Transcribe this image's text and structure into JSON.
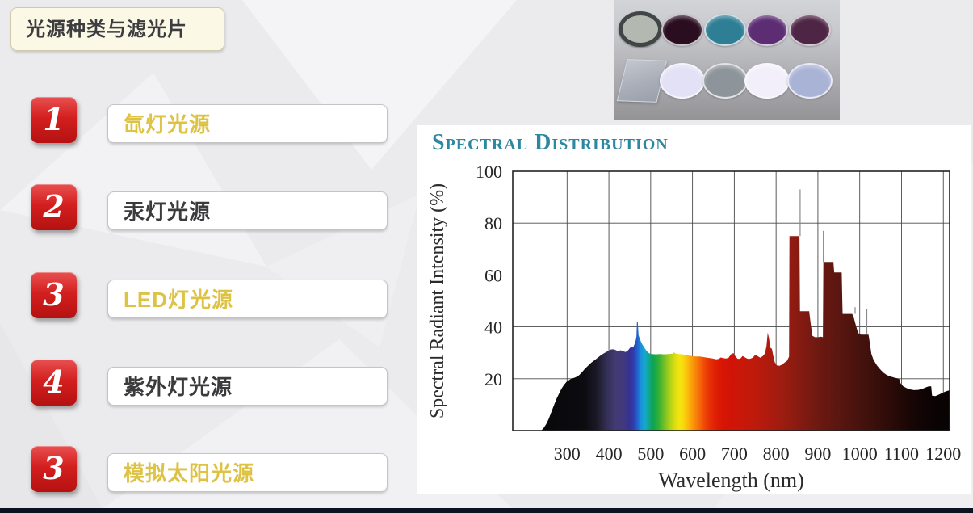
{
  "slide": {
    "title": "光源种类与滤光片",
    "items": [
      {
        "number": "1",
        "label": "氙灯光源",
        "highlight": true
      },
      {
        "number": "2",
        "label": "汞灯光源",
        "highlight": false
      },
      {
        "number": "3",
        "label": "LED灯光源",
        "highlight": true
      },
      {
        "number": "4",
        "label": "紫外灯光源",
        "highlight": false
      },
      {
        "number": "3",
        "label": "模拟太阳光源",
        "highlight": true
      }
    ],
    "colors": {
      "badge_red": "#d41f1f",
      "highlight_yellow": "#ddc243",
      "text_dark": "#3b3b3e",
      "title_box_bg": "#fcf8e6",
      "bottom_bar": "#0c1220",
      "chart_title_teal": "#2e87a0"
    }
  },
  "filters_photo": {
    "description": "photo of optical filters, two rows of five",
    "rows": [
      {
        "items": [
          {
            "name": "nd-filter",
            "type": "circle-ring",
            "color": "#b3b8b0",
            "ring": "#404645"
          },
          {
            "name": "dark-magenta-filter",
            "type": "ellipse",
            "color": "#2b0d20"
          },
          {
            "name": "teal-filter",
            "type": "ellipse",
            "color": "#2e7e95"
          },
          {
            "name": "purple-filter",
            "type": "ellipse",
            "color": "#5c2d72"
          },
          {
            "name": "plum-filter",
            "type": "ellipse",
            "color": "#4f2546"
          }
        ]
      },
      {
        "items": [
          {
            "name": "glass-square-filter",
            "type": "square-glass",
            "color": "#aab0bc"
          },
          {
            "name": "pale-lavender-filter",
            "type": "ellipse",
            "color": "#e2e1f6"
          },
          {
            "name": "gray-filter",
            "type": "ellipse",
            "color": "#8d959b"
          },
          {
            "name": "white-filter",
            "type": "ellipse",
            "color": "#f2effa"
          },
          {
            "name": "light-blue-filter",
            "type": "ellipse",
            "color": "#a9b3d6"
          }
        ]
      }
    ]
  },
  "chart_data": {
    "type": "area",
    "title": "Spectral Distribution",
    "title_display": "SPECTRAL DISTRIBUTION",
    "xlabel": "Wavelength (nm)",
    "ylabel": "Spectral Radiant Intensity (%)",
    "xlim": [
      170,
      1215
    ],
    "ylim": [
      0,
      100
    ],
    "x_ticks": [
      300,
      400,
      500,
      600,
      700,
      800,
      900,
      1000,
      1100,
      1200
    ],
    "y_ticks": [
      20,
      40,
      60,
      80,
      100
    ],
    "grid": true,
    "legend": "none",
    "series": [
      {
        "name": "xenon-lamp-spectral-output",
        "points": [
          [
            238,
            0
          ],
          [
            244,
            1
          ],
          [
            250,
            2.5
          ],
          [
            256,
            4.5
          ],
          [
            262,
            7
          ],
          [
            268,
            9.5
          ],
          [
            274,
            12
          ],
          [
            280,
            14
          ],
          [
            286,
            16
          ],
          [
            292,
            17.5
          ],
          [
            298,
            18.7
          ],
          [
            304,
            19.4
          ],
          [
            310,
            20
          ],
          [
            318,
            20.4
          ],
          [
            326,
            21
          ],
          [
            334,
            22.2
          ],
          [
            342,
            23.7
          ],
          [
            350,
            25
          ],
          [
            358,
            26.2
          ],
          [
            366,
            27.2
          ],
          [
            374,
            28.2
          ],
          [
            382,
            29.2
          ],
          [
            390,
            30
          ],
          [
            398,
            30.7
          ],
          [
            404,
            31.2
          ],
          [
            410,
            31.4
          ],
          [
            416,
            31.1
          ],
          [
            422,
            30.6
          ],
          [
            428,
            31
          ],
          [
            434,
            30.6
          ],
          [
            440,
            30.3
          ],
          [
            446,
            31
          ],
          [
            450,
            31.8
          ],
          [
            454,
            32.4
          ],
          [
            458,
            32
          ],
          [
            461,
            33.2
          ],
          [
            464,
            34.6
          ],
          [
            466,
            36.2
          ],
          [
            467,
            42
          ],
          [
            469,
            42
          ],
          [
            471,
            36.8
          ],
          [
            474,
            35.4
          ],
          [
            477,
            34.2
          ],
          [
            480,
            33.2
          ],
          [
            484,
            32.2
          ],
          [
            488,
            31.2
          ],
          [
            492,
            30.4
          ],
          [
            496,
            29.8
          ],
          [
            502,
            29.5
          ],
          [
            512,
            29.4
          ],
          [
            522,
            29.5
          ],
          [
            532,
            29.4
          ],
          [
            542,
            29.5
          ],
          [
            552,
            29.7
          ],
          [
            556,
            30.2
          ],
          [
            560,
            29.7
          ],
          [
            568,
            29.5
          ],
          [
            576,
            29.4
          ],
          [
            584,
            29.2
          ],
          [
            592,
            28.9
          ],
          [
            600,
            28.7
          ],
          [
            608,
            28.6
          ],
          [
            616,
            28.6
          ],
          [
            624,
            28.4
          ],
          [
            632,
            28.2
          ],
          [
            640,
            28
          ],
          [
            648,
            27.8
          ],
          [
            656,
            27.5
          ],
          [
            662,
            27.6
          ],
          [
            668,
            28.2
          ],
          [
            674,
            27.9
          ],
          [
            680,
            27.8
          ],
          [
            686,
            28
          ],
          [
            692,
            29.4
          ],
          [
            698,
            29.9
          ],
          [
            703,
            28.6
          ],
          [
            708,
            27.7
          ],
          [
            714,
            27.7
          ],
          [
            720,
            28.8
          ],
          [
            726,
            28.2
          ],
          [
            732,
            27.7
          ],
          [
            738,
            27.7
          ],
          [
            744,
            28.1
          ],
          [
            750,
            29.2
          ],
          [
            756,
            28.7
          ],
          [
            762,
            28.1
          ],
          [
            768,
            28.7
          ],
          [
            773,
            29.7
          ],
          [
            777,
            32.5
          ],
          [
            780,
            37.8
          ],
          [
            783,
            35.5
          ],
          [
            786,
            32
          ],
          [
            790,
            31.5
          ],
          [
            793,
            29
          ],
          [
            797,
            26.3
          ],
          [
            802,
            25.1
          ],
          [
            808,
            25
          ],
          [
            814,
            25.4
          ],
          [
            820,
            26.2
          ],
          [
            826,
            26.9
          ],
          [
            831,
            28.5
          ],
          [
            832,
            75
          ],
          [
            856,
            75
          ],
          [
            857,
            46
          ],
          [
            879,
            46
          ],
          [
            883,
            41
          ],
          [
            887,
            36.5
          ],
          [
            893,
            36
          ],
          [
            901,
            36
          ],
          [
            907,
            36.2
          ],
          [
            912,
            36
          ],
          [
            913,
            65
          ],
          [
            937,
            65
          ],
          [
            939,
            61
          ],
          [
            957,
            61
          ],
          [
            959,
            45
          ],
          [
            982,
            45
          ],
          [
            986,
            43.5
          ],
          [
            991,
            40.5
          ],
          [
            996,
            37.8
          ],
          [
            1000,
            37.1
          ],
          [
            1004,
            37
          ],
          [
            1021,
            37
          ],
          [
            1024,
            34
          ],
          [
            1028,
            29.5
          ],
          [
            1033,
            27.3
          ],
          [
            1041,
            25.2
          ],
          [
            1049,
            23.6
          ],
          [
            1057,
            22.3
          ],
          [
            1065,
            21.4
          ],
          [
            1075,
            20.8
          ],
          [
            1085,
            20.3
          ],
          [
            1094,
            20
          ],
          [
            1098,
            18.2
          ],
          [
            1104,
            17.1
          ],
          [
            1112,
            16.4
          ],
          [
            1120,
            15.9
          ],
          [
            1130,
            15.6
          ],
          [
            1140,
            15.7
          ],
          [
            1150,
            16.1
          ],
          [
            1157,
            16.6
          ],
          [
            1164,
            17
          ],
          [
            1171,
            17.1
          ],
          [
            1173,
            13.5
          ],
          [
            1181,
            13.3
          ],
          [
            1188,
            13.8
          ],
          [
            1196,
            14.4
          ],
          [
            1204,
            15
          ],
          [
            1211,
            15.4
          ],
          [
            1215,
            15.5
          ]
        ]
      }
    ],
    "thin_spikes": [
      [
        857.5,
        75,
        93
      ],
      [
        913,
        65,
        77
      ],
      [
        989,
        45,
        47.6
      ],
      [
        1017,
        37,
        47
      ]
    ],
    "spectrum_gradient": [
      [
        170,
        "#050505"
      ],
      [
        340,
        "#0c0b10"
      ],
      [
        370,
        "#1b1826"
      ],
      [
        395,
        "#343055"
      ],
      [
        415,
        "#423a72"
      ],
      [
        435,
        "#403a7e"
      ],
      [
        450,
        "#343193"
      ],
      [
        460,
        "#2f3fb4"
      ],
      [
        468,
        "#2062cd"
      ],
      [
        476,
        "#1a8ed8"
      ],
      [
        486,
        "#15a8cf"
      ],
      [
        495,
        "#12a795"
      ],
      [
        505,
        "#0ca353"
      ],
      [
        518,
        "#2fae39"
      ],
      [
        532,
        "#73bf25"
      ],
      [
        545,
        "#abd01a"
      ],
      [
        558,
        "#dcdd12"
      ],
      [
        568,
        "#f3e50e"
      ],
      [
        578,
        "#f9d90c"
      ],
      [
        588,
        "#fbbd0b"
      ],
      [
        598,
        "#faa00a"
      ],
      [
        608,
        "#f88309"
      ],
      [
        618,
        "#f56708"
      ],
      [
        628,
        "#ef4a07"
      ],
      [
        640,
        "#e73106"
      ],
      [
        655,
        "#df1f05"
      ],
      [
        672,
        "#d81505"
      ],
      [
        695,
        "#d01407"
      ],
      [
        720,
        "#c81809"
      ],
      [
        750,
        "#bd1a0b"
      ],
      [
        785,
        "#ac1b0e"
      ],
      [
        815,
        "#9d1c10"
      ],
      [
        845,
        "#8c1b11"
      ],
      [
        875,
        "#7a1a11"
      ],
      [
        905,
        "#6c1911"
      ],
      [
        935,
        "#601710"
      ],
      [
        970,
        "#52140f"
      ],
      [
        1005,
        "#45120d"
      ],
      [
        1045,
        "#370e0a"
      ],
      [
        1085,
        "#270a07"
      ],
      [
        1125,
        "#170605"
      ],
      [
        1165,
        "#0d0404"
      ],
      [
        1215,
        "#070202"
      ]
    ]
  }
}
